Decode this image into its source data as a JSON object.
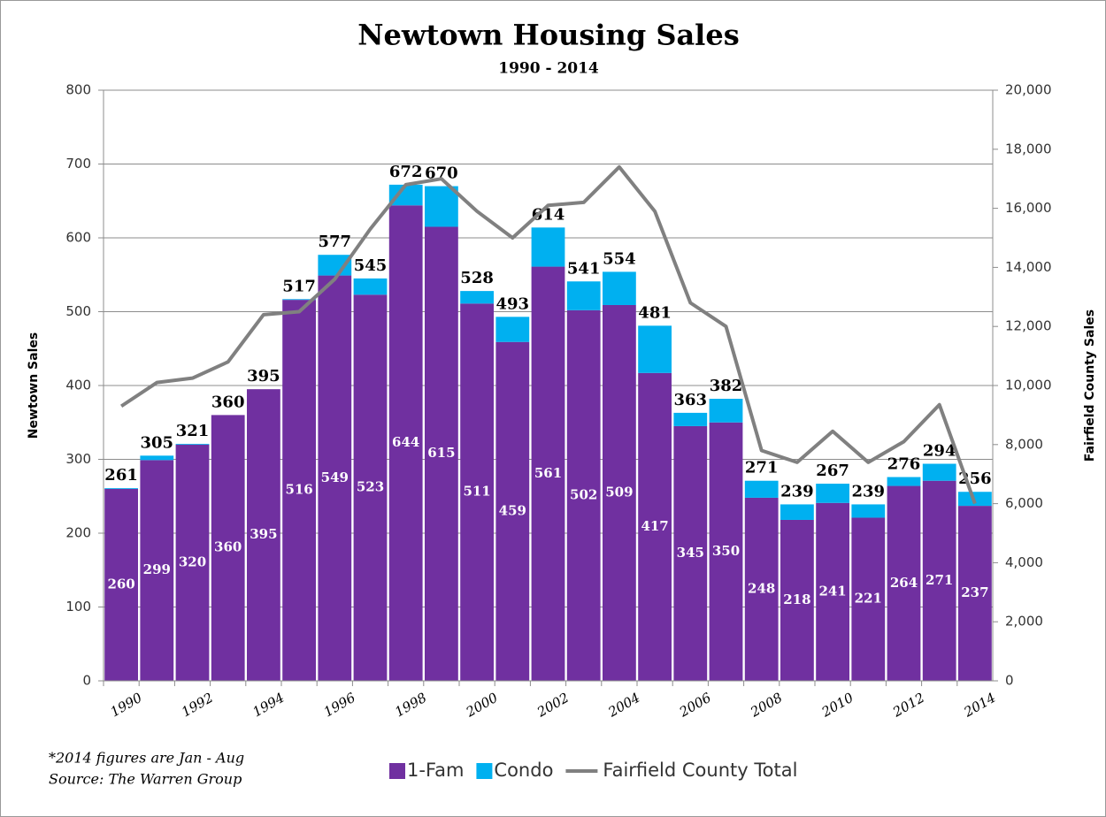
{
  "chart_data": {
    "type": "bar",
    "stacked": true,
    "title": "Newtown Housing Sales",
    "subtitle": "1990 - 2014",
    "y_label": "Newtown Sales",
    "y2_label": "Fairfield County Sales",
    "categories": [
      "1990",
      null,
      "1992",
      null,
      "1994",
      null,
      "1996",
      null,
      "1998",
      null,
      "2000",
      null,
      "2002",
      null,
      "2004",
      null,
      "2006",
      null,
      "2008",
      null,
      "2010",
      null,
      "2012",
      null,
      "2014"
    ],
    "series": [
      {
        "name": "1-Fam",
        "type": "bar",
        "color": "#7030a0",
        "values": [
          260,
          299,
          320,
          360,
          395,
          516,
          549,
          523,
          644,
          615,
          511,
          459,
          561,
          502,
          509,
          417,
          345,
          350,
          248,
          218,
          241,
          221,
          264,
          271,
          237
        ]
      },
      {
        "name": "Condo",
        "type": "bar",
        "color": "#00b0f0",
        "values": [
          1,
          6,
          1,
          0,
          0,
          1,
          28,
          22,
          28,
          55,
          17,
          34,
          53,
          39,
          45,
          64,
          18,
          32,
          23,
          21,
          26,
          18,
          12,
          23,
          19
        ]
      },
      {
        "name": "Fairfield County Total",
        "type": "line",
        "axis": "y2",
        "color": "#808080",
        "values": [
          9300,
          10100,
          10250,
          10800,
          12400,
          12500,
          13600,
          15300,
          16800,
          17000,
          15900,
          15000,
          16100,
          16200,
          17400,
          15900,
          12800,
          12000,
          7800,
          7400,
          8450,
          7400,
          8100,
          9350,
          6000
        ]
      }
    ],
    "totals": [
      261,
      305,
      321,
      360,
      395,
      517,
      577,
      545,
      672,
      670,
      528,
      493,
      614,
      541,
      554,
      481,
      363,
      382,
      271,
      239,
      267,
      239,
      276,
      294,
      256
    ],
    "ylim": [
      0,
      800
    ],
    "yticks": [
      0,
      100,
      200,
      300,
      400,
      500,
      600,
      700,
      800
    ],
    "y2lim": [
      0,
      20000
    ],
    "y2ticks": [
      0,
      {
        "value": 2000,
        "label": "2,000"
      },
      {
        "value": 4000,
        "label": "4,000"
      },
      {
        "value": 6000,
        "label": "6,000"
      },
      {
        "value": 8000,
        "label": "8,000"
      },
      {
        "value": 10000,
        "label": "10,000"
      },
      {
        "value": 12000,
        "label": "12,000"
      },
      {
        "value": 14000,
        "label": "14,000"
      },
      {
        "value": 16000,
        "label": "16,000"
      },
      {
        "value": 18000,
        "label": "18,000"
      },
      {
        "value": 20000,
        "label": "20,000"
      }
    ],
    "grid": true,
    "legend": "bottom",
    "notes": [
      "*2014 figures are Jan - Aug",
      "Source: The Warren Group"
    ]
  }
}
